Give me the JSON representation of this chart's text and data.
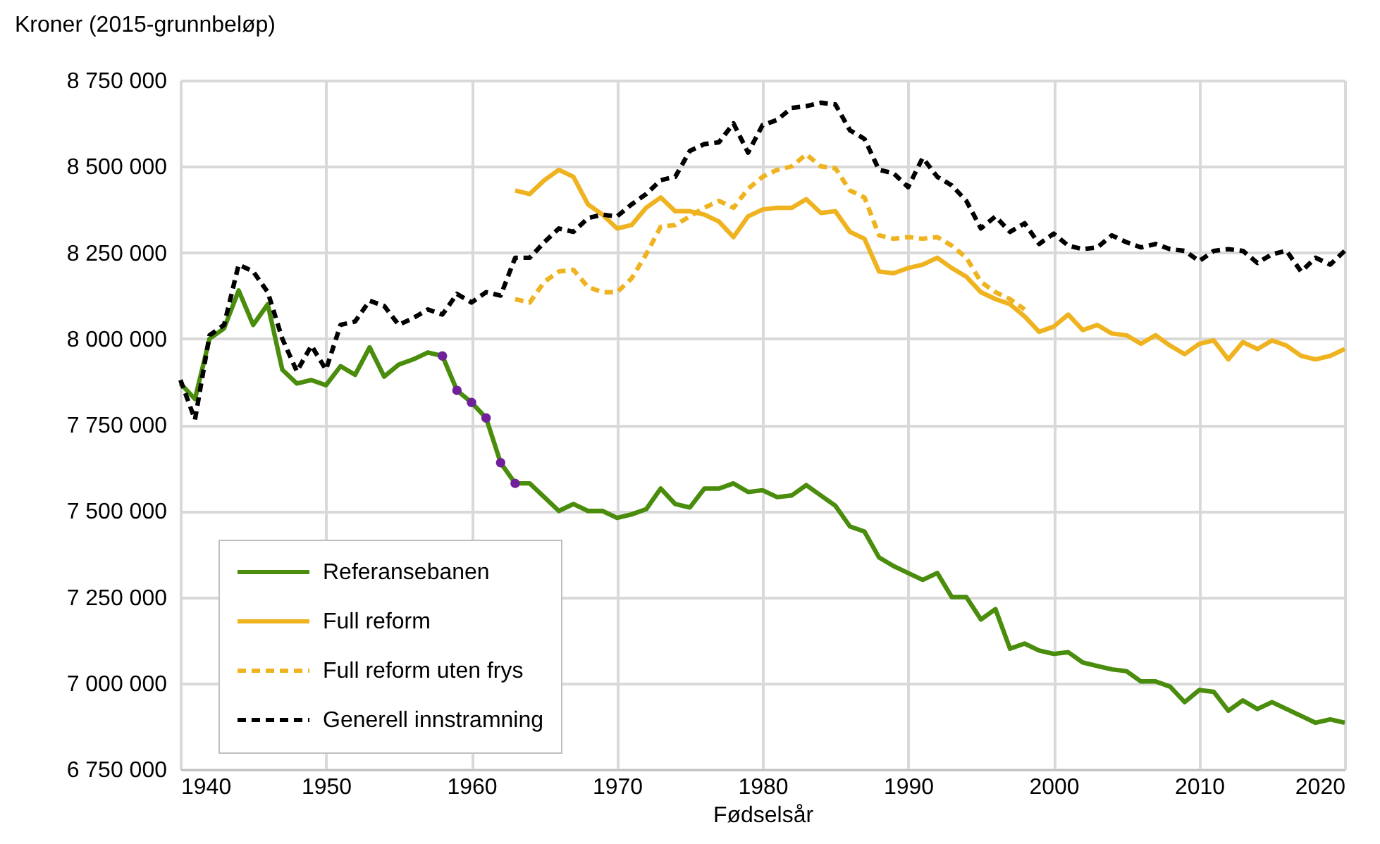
{
  "chart_data": {
    "type": "line",
    "ylabel": "Kroner (2015-grunnbeløp)",
    "xlabel": "Fødselsår",
    "x": [
      1940,
      1941,
      1942,
      1943,
      1944,
      1945,
      1946,
      1947,
      1948,
      1949,
      1950,
      1951,
      1952,
      1953,
      1954,
      1955,
      1956,
      1957,
      1958,
      1959,
      1960,
      1961,
      1962,
      1963,
      1964,
      1965,
      1966,
      1967,
      1968,
      1969,
      1970,
      1971,
      1972,
      1973,
      1974,
      1975,
      1976,
      1977,
      1978,
      1979,
      1980,
      1981,
      1982,
      1983,
      1984,
      1985,
      1986,
      1987,
      1988,
      1989,
      1990,
      1991,
      1992,
      1993,
      1994,
      1995,
      1996,
      1997,
      1998,
      1999,
      2000,
      2001,
      2002,
      2003,
      2004,
      2005,
      2006,
      2007,
      2008,
      2009,
      2010,
      2011,
      2012,
      2013,
      2014,
      2015,
      2016,
      2017,
      2018,
      2019,
      2020
    ],
    "xlim": [
      1940,
      2020
    ],
    "xticks": [
      1940,
      1950,
      1960,
      1970,
      1980,
      1990,
      2000,
      2010,
      2020
    ],
    "ylim": [
      6750000,
      8750000
    ],
    "yticks": [
      {
        "value": 6750000,
        "label": "6 750 000"
      },
      {
        "value": 7000000,
        "label": "7 000 000"
      },
      {
        "value": 7250000,
        "label": "7 250 000"
      },
      {
        "value": 7500000,
        "label": "7 500 000"
      },
      {
        "value": 7750000,
        "label": "7 750 000"
      },
      {
        "value": 8000000,
        "label": "8 000 000"
      },
      {
        "value": 8250000,
        "label": "8 250 000"
      },
      {
        "value": 8500000,
        "label": "8 500 000"
      },
      {
        "value": 8750000,
        "label": "8 750 000"
      }
    ],
    "grid": true,
    "legend": "bottom left",
    "series": [
      {
        "name": "Referansebanen",
        "color": "#4a8c0c",
        "line_style": "solid",
        "values": [
          7870000,
          7825000,
          8000000,
          8030000,
          8140000,
          8040000,
          8100000,
          7910000,
          7870000,
          7880000,
          7865000,
          7920000,
          7895000,
          7975000,
          7890000,
          7925000,
          7940000,
          7960000,
          7950000,
          7850000,
          7815000,
          7770000,
          7640000,
          7580000,
          7580000,
          7540000,
          7500000,
          7520000,
          7500000,
          7500000,
          7480000,
          7490000,
          7505000,
          7565000,
          7520000,
          7510000,
          7565000,
          7565000,
          7580000,
          7555000,
          7560000,
          7540000,
          7545000,
          7575000,
          7545000,
          7515000,
          7455000,
          7440000,
          7365000,
          7340000,
          7320000,
          7300000,
          7320000,
          7250000,
          7250000,
          7185000,
          7215000,
          7100000,
          7115000,
          7095000,
          7085000,
          7090000,
          7060000,
          7050000,
          7040000,
          7035000,
          7005000,
          7005000,
          6990000,
          6945000,
          6980000,
          6975000,
          6920000,
          6950000,
          6925000,
          6945000,
          6925000,
          6905000,
          6885000,
          6895000,
          6885000
        ]
      },
      {
        "name": "Full reform",
        "color": "#efb320",
        "line_style": "solid",
        "x": [
          1963,
          1964,
          1965,
          1966,
          1967,
          1968,
          1969,
          1970,
          1971,
          1972,
          1973,
          1974,
          1975,
          1976,
          1977,
          1978,
          1979,
          1980,
          1981,
          1982,
          1983,
          1984,
          1985,
          1986,
          1987,
          1988,
          1989,
          1990,
          1991,
          1992,
          1993,
          1994,
          1995,
          1996,
          1997,
          1998,
          1999,
          2000,
          2001,
          2002,
          2003,
          2004,
          2005,
          2006,
          2007,
          2008,
          2009,
          2010,
          2011,
          2012,
          2013,
          2014,
          2015,
          2016,
          2017,
          2018,
          2019,
          2020
        ],
        "values": [
          8430000,
          8420000,
          8460000,
          8490000,
          8470000,
          8390000,
          8360000,
          8320000,
          8330000,
          8380000,
          8410000,
          8370000,
          8370000,
          8360000,
          8340000,
          8295000,
          8355000,
          8375000,
          8380000,
          8380000,
          8405000,
          8365000,
          8370000,
          8310000,
          8290000,
          8195000,
          8190000,
          8205000,
          8215000,
          8235000,
          8205000,
          8180000,
          8135000,
          8115000,
          8100000,
          8065000,
          8020000,
          8035000,
          8070000,
          8025000,
          8040000,
          8015000,
          8010000,
          7985000,
          8010000,
          7980000,
          7955000,
          7985000,
          7995000,
          7940000,
          7990000,
          7970000,
          7995000,
          7980000,
          7950000,
          7940000,
          7950000,
          7970000
        ]
      },
      {
        "name": "Full reform uten frys",
        "color": "#efb320",
        "line_style": "dashed",
        "x": [
          1963,
          1964,
          1965,
          1966,
          1967,
          1968,
          1969,
          1970,
          1971,
          1972,
          1973,
          1974,
          1975,
          1976,
          1977,
          1978,
          1979,
          1980,
          1981,
          1982,
          1983,
          1984,
          1985,
          1986,
          1987,
          1988,
          1989,
          1990,
          1991,
          1992,
          1993,
          1994,
          1995,
          1996,
          1997,
          1998
        ],
        "values": [
          8115000,
          8105000,
          8165000,
          8195000,
          8200000,
          8150000,
          8135000,
          8135000,
          8175000,
          8245000,
          8325000,
          8330000,
          8355000,
          8380000,
          8400000,
          8380000,
          8435000,
          8470000,
          8490000,
          8500000,
          8535000,
          8500000,
          8495000,
          8430000,
          8410000,
          8300000,
          8290000,
          8295000,
          8290000,
          8295000,
          8270000,
          8235000,
          8165000,
          8135000,
          8115000,
          8085000
        ]
      },
      {
        "name": "Generell innstramning",
        "color": "#000000",
        "line_style": "dashed",
        "values": [
          7880000,
          7765000,
          8010000,
          8040000,
          8215000,
          8195000,
          8135000,
          8000000,
          7905000,
          7980000,
          7910000,
          8040000,
          8050000,
          8110000,
          8095000,
          8040000,
          8060000,
          8085000,
          8070000,
          8130000,
          8105000,
          8135000,
          8125000,
          8235000,
          8235000,
          8280000,
          8320000,
          8310000,
          8350000,
          8360000,
          8355000,
          8390000,
          8420000,
          8460000,
          8470000,
          8545000,
          8565000,
          8570000,
          8625000,
          8540000,
          8620000,
          8635000,
          8670000,
          8675000,
          8685000,
          8680000,
          8605000,
          8580000,
          8490000,
          8480000,
          8440000,
          8525000,
          8470000,
          8445000,
          8400000,
          8320000,
          8355000,
          8310000,
          8335000,
          8275000,
          8305000,
          8270000,
          8260000,
          8265000,
          8300000,
          8280000,
          8265000,
          8275000,
          8260000,
          8255000,
          8225000,
          8255000,
          8260000,
          8255000,
          8220000,
          8245000,
          8255000,
          8195000,
          8235000,
          8215000,
          8255000
        ]
      },
      {
        "type": "scatter",
        "color": "#70209a",
        "marker": "circle",
        "x": [
          1958,
          1959,
          1960,
          1961,
          1962,
          1963
        ],
        "values": [
          7950000,
          7850000,
          7815000,
          7770000,
          7640000,
          7580000
        ]
      }
    ]
  }
}
